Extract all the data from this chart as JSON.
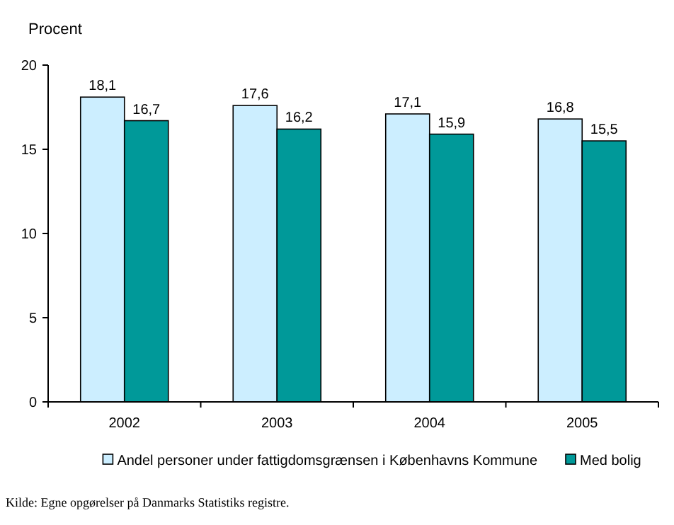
{
  "chart_data": {
    "type": "bar",
    "ylabel": "Procent",
    "categories": [
      "2002",
      "2003",
      "2004",
      "2005"
    ],
    "series": [
      {
        "name": "Andel personer under fattigdomsgrænsen i Københavns Kommune",
        "color": "#cceeff",
        "values": [
          18.1,
          17.6,
          17.1,
          16.8
        ],
        "value_labels": [
          "18,1",
          "17,6",
          "17,1",
          "16,8"
        ]
      },
      {
        "name": "Med bolig",
        "color": "#009999",
        "values": [
          16.7,
          16.2,
          15.9,
          15.5
        ],
        "value_labels": [
          "16,7",
          "16,2",
          "15,9",
          "15,5"
        ]
      }
    ],
    "ylim": [
      0,
      20
    ],
    "yticks": [
      0,
      5,
      10,
      15,
      20
    ],
    "legend": "bottom",
    "grid": false,
    "annotations": [
      "Kilde: Egne opgørelser på Danmarks Statistiks registre."
    ]
  }
}
